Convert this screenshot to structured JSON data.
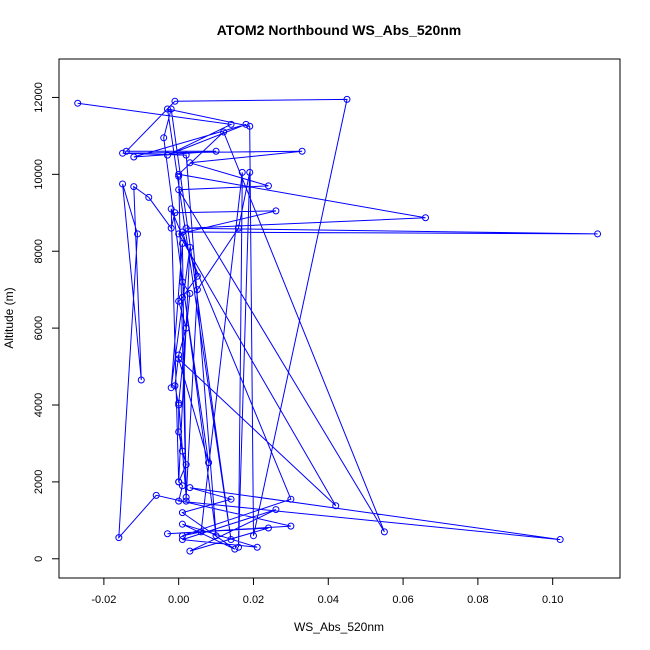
{
  "chart_data": {
    "type": "line",
    "title": "ATOM2 Northbound WS_Abs_520nm",
    "xlabel": "WS_Abs_520nm",
    "ylabel": "Altitude (m)",
    "xlim": [
      -0.032,
      0.118
    ],
    "ylim": [
      -500,
      13000
    ],
    "x_ticks": [
      -0.02,
      0.0,
      0.02,
      0.04,
      0.06,
      0.08,
      0.1
    ],
    "x_tick_labels": [
      "-0.02",
      "0.00",
      "0.02",
      "0.04",
      "0.06",
      "0.08",
      "0.10"
    ],
    "y_ticks": [
      0,
      2000,
      4000,
      6000,
      8000,
      10000,
      12000
    ],
    "y_tick_labels": [
      "0",
      "2000",
      "4000",
      "6000",
      "8000",
      "10000",
      "12000"
    ],
    "grid": false,
    "legend": "none",
    "series_color": "#0000ff",
    "marker": "open-circle",
    "series": [
      {
        "points": [
          [
            -0.027,
            11850
          ],
          [
            0.014,
            11300
          ],
          [
            -0.003,
            10500
          ],
          [
            0.018,
            11300
          ],
          [
            -0.012,
            10450
          ],
          [
            0.01,
            10600
          ],
          [
            -0.014,
            10600
          ],
          [
            -0.001,
            11900
          ],
          [
            0.045,
            11950
          ],
          [
            0.02,
            600
          ],
          [
            0.019,
            11250
          ],
          [
            -0.003,
            11700
          ],
          [
            0.014,
            500
          ],
          [
            -0.002,
            11700
          ],
          [
            -0.004,
            10950
          ],
          [
            0.01,
            600
          ],
          [
            0.002,
            10500
          ],
          [
            -0.015,
            10550
          ],
          [
            0.033,
            10600
          ],
          [
            0.003,
            10300
          ],
          [
            0.024,
            9700
          ],
          [
            0.0,
            9600
          ],
          [
            0.055,
            700
          ],
          [
            0.012,
            11100
          ],
          [
            0.0,
            10000
          ],
          [
            0.066,
            8870
          ],
          [
            0.002,
            8600
          ],
          [
            0.112,
            8450
          ],
          [
            0.001,
            8500
          ],
          [
            0.005,
            7350
          ],
          [
            0.001,
            6800
          ],
          [
            0.0,
            6700
          ],
          [
            0.002,
            6000
          ],
          [
            0.0,
            5300
          ],
          [
            -0.001,
            4500
          ],
          [
            0.0,
            4000
          ],
          [
            0.0,
            3300
          ],
          [
            0.001,
            2800
          ],
          [
            0.002,
            2450
          ],
          [
            0.0,
            2000
          ],
          [
            0.001,
            1900
          ],
          [
            0.0,
            1500
          ],
          [
            0.102,
            500
          ],
          [
            0.003,
            1850
          ],
          [
            0.014,
            1550
          ],
          [
            0.001,
            1200
          ],
          [
            0.015,
            250
          ],
          [
            0.001,
            900
          ],
          [
            0.021,
            300
          ],
          [
            0.001,
            500
          ],
          [
            0.026,
            1280
          ],
          [
            0.003,
            200
          ],
          [
            0.024,
            800
          ],
          [
            -0.003,
            650
          ],
          [
            0.03,
            850
          ],
          [
            -0.006,
            1650
          ],
          [
            -0.016,
            550
          ],
          [
            -0.011,
            8450
          ],
          [
            -0.015,
            9750
          ],
          [
            -0.01,
            4650
          ],
          [
            -0.012,
            9680
          ],
          [
            -0.008,
            9400
          ],
          [
            -0.002,
            8600
          ],
          [
            -0.001,
            9000
          ],
          [
            0.026,
            9050
          ],
          [
            0.0,
            8450
          ],
          [
            0.042,
            1380
          ],
          [
            0.0,
            5200
          ],
          [
            0.008,
            2500
          ],
          [
            0.001,
            7200
          ],
          [
            0.003,
            6900
          ],
          [
            0.0,
            4050
          ],
          [
            0.002,
            1600
          ],
          [
            0.005,
            7000
          ],
          [
            0.016,
            8600
          ],
          [
            0.019,
            10050
          ],
          [
            0.016,
            300
          ],
          [
            0.017,
            10050
          ],
          [
            0.006,
            700
          ],
          [
            0.001,
            600
          ],
          [
            0.03,
            1550
          ],
          [
            -0.002,
            9100
          ],
          [
            0.0,
            2000
          ],
          [
            0.003,
            8100
          ],
          [
            -0.002,
            4450
          ],
          [
            0.001,
            8200
          ],
          [
            0.002,
            1500
          ],
          [
            0.0,
            9950
          ]
        ]
      }
    ]
  }
}
